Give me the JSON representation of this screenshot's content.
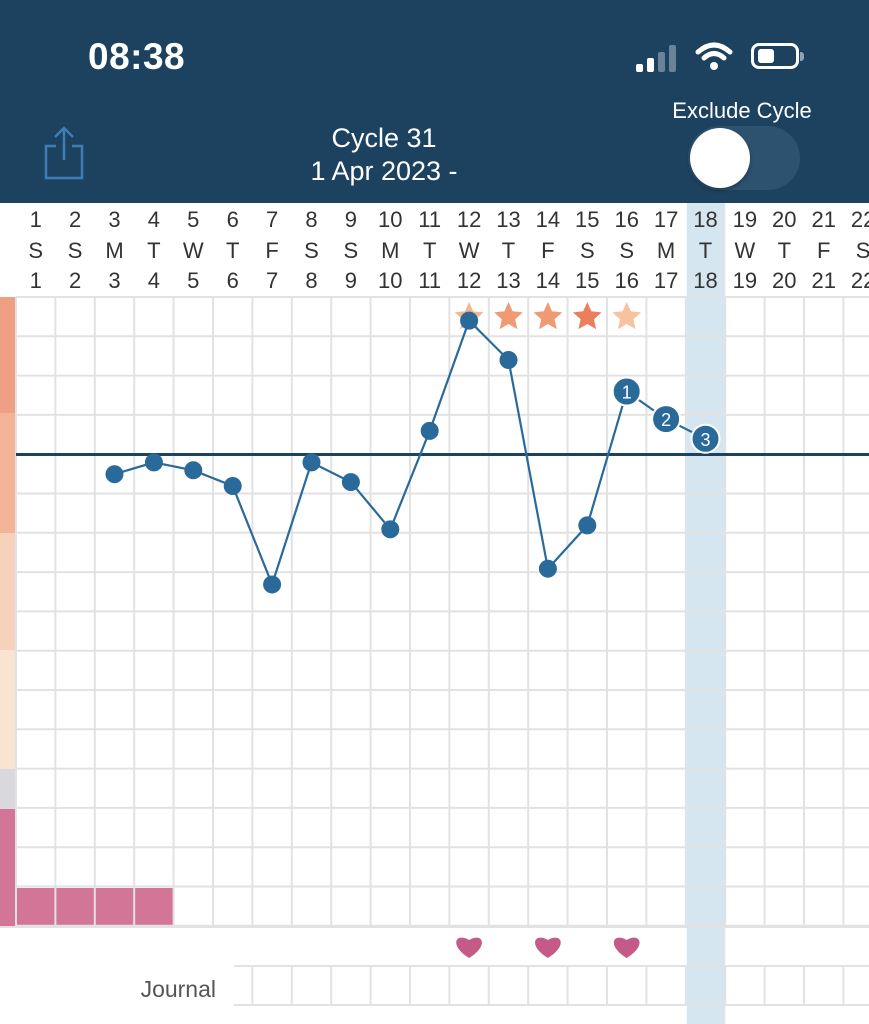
{
  "status_bar": {
    "time": "08:38"
  },
  "header": {
    "title": "Cycle 31",
    "subtitle": "1 Apr 2023 -",
    "exclude_label": "Exclude Cycle",
    "exclude_toggle_on": false
  },
  "colors": {
    "header_bg": "#1c4260",
    "line": "#2a6a9a",
    "point": "#2a6a9a",
    "coverline": "#1c4260",
    "today_column": "#d6e6f1",
    "heart": "#c45a86",
    "period": "#d37597",
    "grid": "#e2e2e2"
  },
  "journal_label": "Journal",
  "today_column_day": 18,
  "chart_data": {
    "type": "line",
    "days": [
      {
        "cycle_day": "1",
        "weekday": "S",
        "date": "1"
      },
      {
        "cycle_day": "2",
        "weekday": "S",
        "date": "2"
      },
      {
        "cycle_day": "3",
        "weekday": "M",
        "date": "3"
      },
      {
        "cycle_day": "4",
        "weekday": "T",
        "date": "4"
      },
      {
        "cycle_day": "5",
        "weekday": "W",
        "date": "5"
      },
      {
        "cycle_day": "6",
        "weekday": "T",
        "date": "6"
      },
      {
        "cycle_day": "7",
        "weekday": "F",
        "date": "7"
      },
      {
        "cycle_day": "8",
        "weekday": "S",
        "date": "8"
      },
      {
        "cycle_day": "9",
        "weekday": "S",
        "date": "9"
      },
      {
        "cycle_day": "10",
        "weekday": "M",
        "date": "10"
      },
      {
        "cycle_day": "11",
        "weekday": "T",
        "date": "11"
      },
      {
        "cycle_day": "12",
        "weekday": "W",
        "date": "12"
      },
      {
        "cycle_day": "13",
        "weekday": "T",
        "date": "13"
      },
      {
        "cycle_day": "14",
        "weekday": "F",
        "date": "14"
      },
      {
        "cycle_day": "15",
        "weekday": "S",
        "date": "15"
      },
      {
        "cycle_day": "16",
        "weekday": "S",
        "date": "16"
      },
      {
        "cycle_day": "17",
        "weekday": "M",
        "date": "17"
      },
      {
        "cycle_day": "18",
        "weekday": "T",
        "date": "18"
      },
      {
        "cycle_day": "19",
        "weekday": "W",
        "date": "19"
      },
      {
        "cycle_day": "20",
        "weekday": "T",
        "date": "20"
      },
      {
        "cycle_day": "21",
        "weekday": "F",
        "date": "21"
      },
      {
        "cycle_day": "22",
        "weekday": "S",
        "date": "22"
      }
    ],
    "temperature_series": [
      {
        "day": 3,
        "value": 11.5
      },
      {
        "day": 4,
        "value": 11.8
      },
      {
        "day": 5,
        "value": 11.6
      },
      {
        "day": 6,
        "value": 11.2
      },
      {
        "day": 7,
        "value": 8.7
      },
      {
        "day": 8,
        "value": 11.8
      },
      {
        "day": 9,
        "value": 11.3
      },
      {
        "day": 10,
        "value": 10.1
      },
      {
        "day": 11,
        "value": 12.6
      },
      {
        "day": 12,
        "value": 15.4
      },
      {
        "day": 13,
        "value": 14.4
      },
      {
        "day": 14,
        "value": 9.1
      },
      {
        "day": 15,
        "value": 10.2
      },
      {
        "day": 16,
        "value": 13.6,
        "label": "1"
      },
      {
        "day": 17,
        "value": 12.9,
        "label": "2"
      },
      {
        "day": 18,
        "value": 12.4,
        "label": "3"
      }
    ],
    "coverline": 12.0,
    "ylim": [
      0,
      16
    ],
    "peak_star_days": [
      12,
      13,
      14,
      15,
      16
    ],
    "intercourse_days": [
      12,
      14,
      16
    ],
    "period_days": [
      1,
      2,
      3,
      4
    ]
  }
}
